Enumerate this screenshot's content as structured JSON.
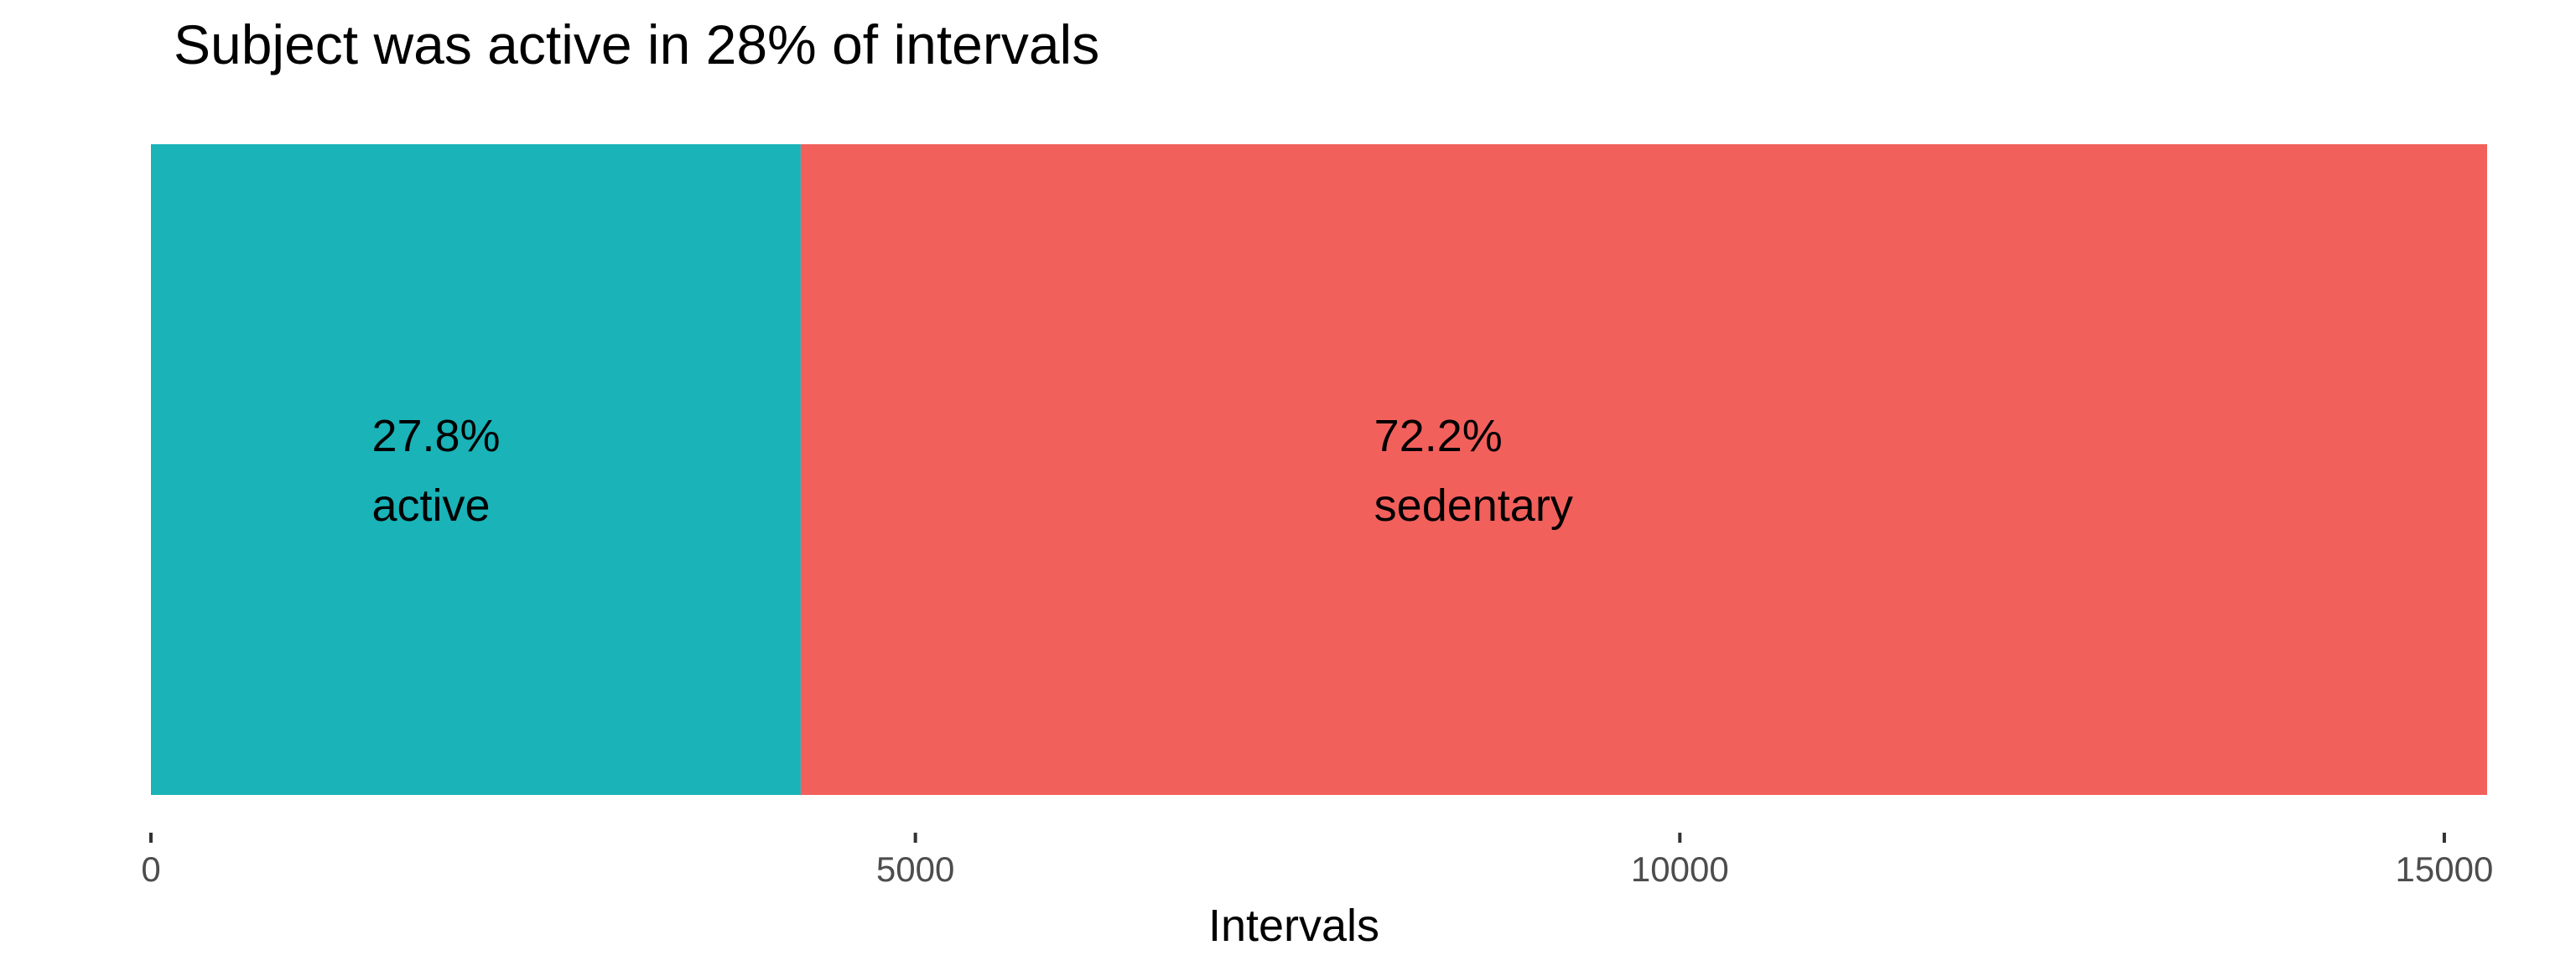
{
  "chart_data": {
    "type": "bar",
    "orientation": "horizontal-stacked",
    "title": "Subject was active in 28% of intervals",
    "xlabel": "Intervals",
    "ylabel": "",
    "xlim": [
      0,
      15280
    ],
    "x_ticks": [
      0,
      5000,
      10000,
      15000
    ],
    "x_tick_labels": [
      "0",
      "5000",
      "10000",
      "15000"
    ],
    "grid": false,
    "legend": "none",
    "segments": [
      {
        "category": "active",
        "value": 4250,
        "percent_label": "27.8%",
        "category_label": "active",
        "color": "#19B3B8"
      },
      {
        "category": "sedentary",
        "value": 11030,
        "percent_label": "72.2%",
        "category_label": "sedentary",
        "color": "#F2605C"
      }
    ]
  }
}
